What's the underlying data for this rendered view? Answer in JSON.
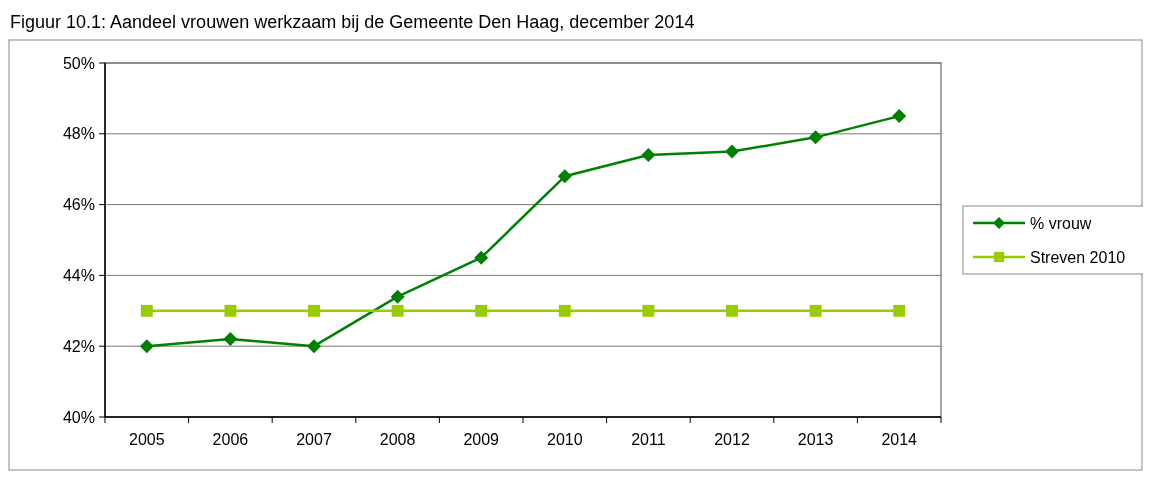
{
  "chart_data": {
    "type": "line",
    "title": "Figuur 10.1: Aandeel vrouwen werkzaam bij de Gemeente Den Haag, december 2014",
    "categories": [
      "2005",
      "2006",
      "2007",
      "2008",
      "2009",
      "2010",
      "2011",
      "2012",
      "2013",
      "2014"
    ],
    "series": [
      {
        "name": "% vrouw",
        "color": "#008000",
        "marker": "diamond",
        "values": [
          42.0,
          42.2,
          42.0,
          43.4,
          44.5,
          46.8,
          47.4,
          47.5,
          47.9,
          48.5
        ]
      },
      {
        "name": "Streven 2010",
        "color": "#99cc00",
        "marker": "square",
        "values": [
          43,
          43,
          43,
          43,
          43,
          43,
          43,
          43,
          43,
          43
        ]
      }
    ],
    "ylim": [
      40,
      50
    ],
    "yticks": [
      {
        "value": 40,
        "label": "40%"
      },
      {
        "value": 42,
        "label": "42%"
      },
      {
        "value": 44,
        "label": "44%"
      },
      {
        "value": 46,
        "label": "46%"
      },
      {
        "value": 48,
        "label": "48%"
      },
      {
        "value": 50,
        "label": "50%"
      }
    ],
    "grid": "y",
    "legend": "right",
    "line_style": "solid"
  }
}
